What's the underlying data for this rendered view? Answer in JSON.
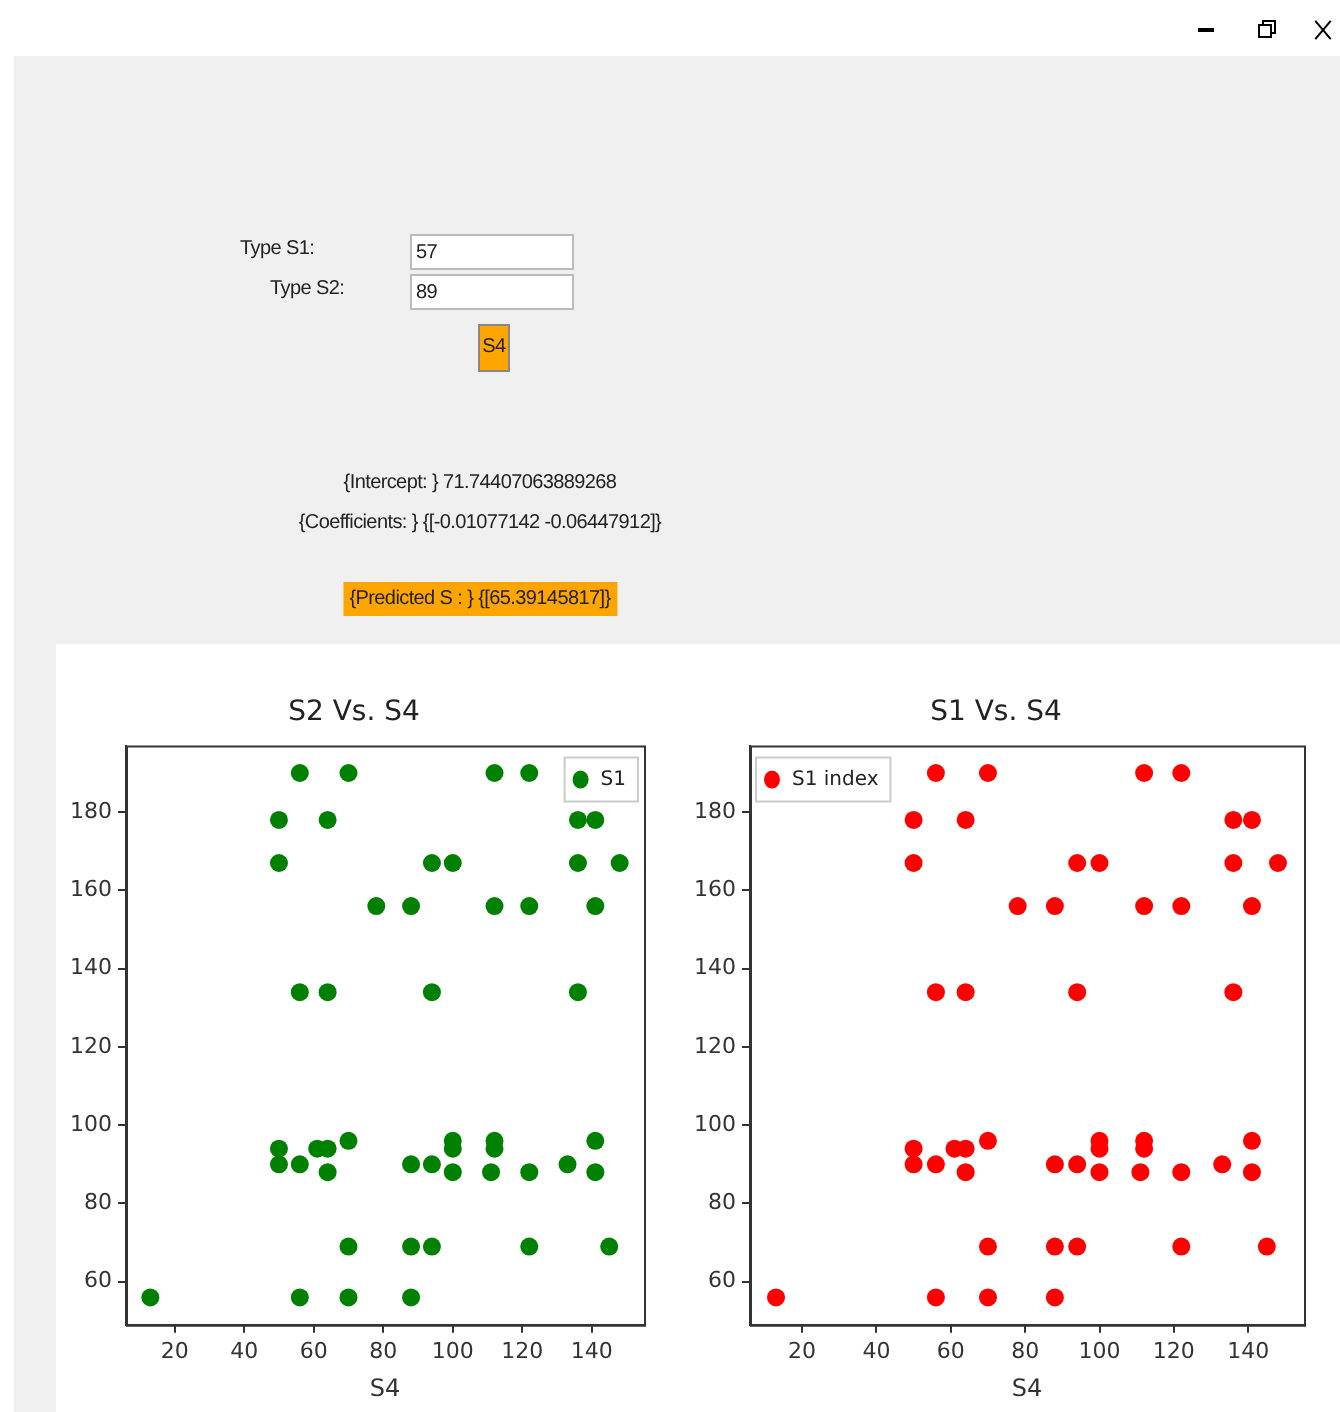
{
  "chart_data": [
    {
      "type": "other",
      "annotations": [
        "Type S1:",
        "57",
        "Type S2:",
        "89",
        "S4",
        "{Intercept: } 71.74407063889268",
        "{Coefficients: } {[-0.01077142 -0.06447912]}",
        "{Predicted S : } {[65.39145817]}"
      ]
    },
    {
      "type": "scatter",
      "title": "S2 Vs. S4",
      "xlabel": "S4",
      "xlim": [
        6,
        155
      ],
      "ylim": [
        49,
        197
      ],
      "xticks": [
        20,
        40,
        60,
        80,
        100,
        120,
        140
      ],
      "yticks": [
        60,
        80,
        100,
        120,
        140,
        160,
        180
      ],
      "grid": false,
      "legend": "top right",
      "marker": "circle",
      "series": [
        {
          "name": "S1",
          "color": "#008000",
          "x": [
            56,
            70,
            112,
            122,
            50,
            64,
            136,
            141,
            50,
            94,
            100,
            136,
            148,
            78,
            88,
            112,
            122,
            141,
            56,
            64,
            94,
            136,
            70,
            100,
            112,
            141,
            50,
            61,
            64,
            100,
            112,
            50,
            56,
            88,
            94,
            133,
            64,
            100,
            111,
            122,
            141,
            70,
            88,
            94,
            122,
            145,
            13,
            56,
            70,
            88
          ],
          "values": [
            190,
            190,
            190,
            190,
            178,
            178,
            178,
            178,
            167,
            167,
            167,
            167,
            167,
            156,
            156,
            156,
            156,
            156,
            134,
            134,
            134,
            134,
            96,
            96,
            96,
            96,
            94,
            94,
            94,
            94,
            94,
            90,
            90,
            90,
            90,
            90,
            88,
            88,
            88,
            88,
            88,
            69,
            69,
            69,
            69,
            69,
            56,
            56,
            56,
            56
          ]
        }
      ]
    },
    {
      "type": "scatter",
      "title": "S1 Vs. S4",
      "xlabel": "S4",
      "xlim": [
        6,
        155
      ],
      "ylim": [
        49,
        197
      ],
      "xticks": [
        20,
        40,
        60,
        80,
        100,
        120,
        140
      ],
      "yticks": [
        60,
        80,
        100,
        120,
        140,
        160,
        180
      ],
      "grid": false,
      "legend": "top left",
      "marker": "circle",
      "series": [
        {
          "name": "S1 index",
          "color": "#ff0000",
          "x": [
            56,
            70,
            112,
            122,
            50,
            64,
            136,
            141,
            50,
            94,
            100,
            136,
            148,
            78,
            88,
            112,
            122,
            141,
            56,
            64,
            94,
            136,
            70,
            100,
            112,
            141,
            50,
            61,
            64,
            100,
            112,
            50,
            56,
            88,
            94,
            133,
            64,
            100,
            111,
            122,
            141,
            70,
            88,
            94,
            122,
            145,
            13,
            56,
            70,
            88
          ],
          "values": [
            190,
            190,
            190,
            190,
            178,
            178,
            178,
            178,
            167,
            167,
            167,
            167,
            167,
            156,
            156,
            156,
            156,
            156,
            134,
            134,
            134,
            134,
            96,
            96,
            96,
            96,
            94,
            94,
            94,
            94,
            94,
            90,
            90,
            90,
            90,
            90,
            88,
            88,
            88,
            88,
            88,
            69,
            69,
            69,
            69,
            69,
            56,
            56,
            56,
            56
          ]
        }
      ]
    }
  ]
}
